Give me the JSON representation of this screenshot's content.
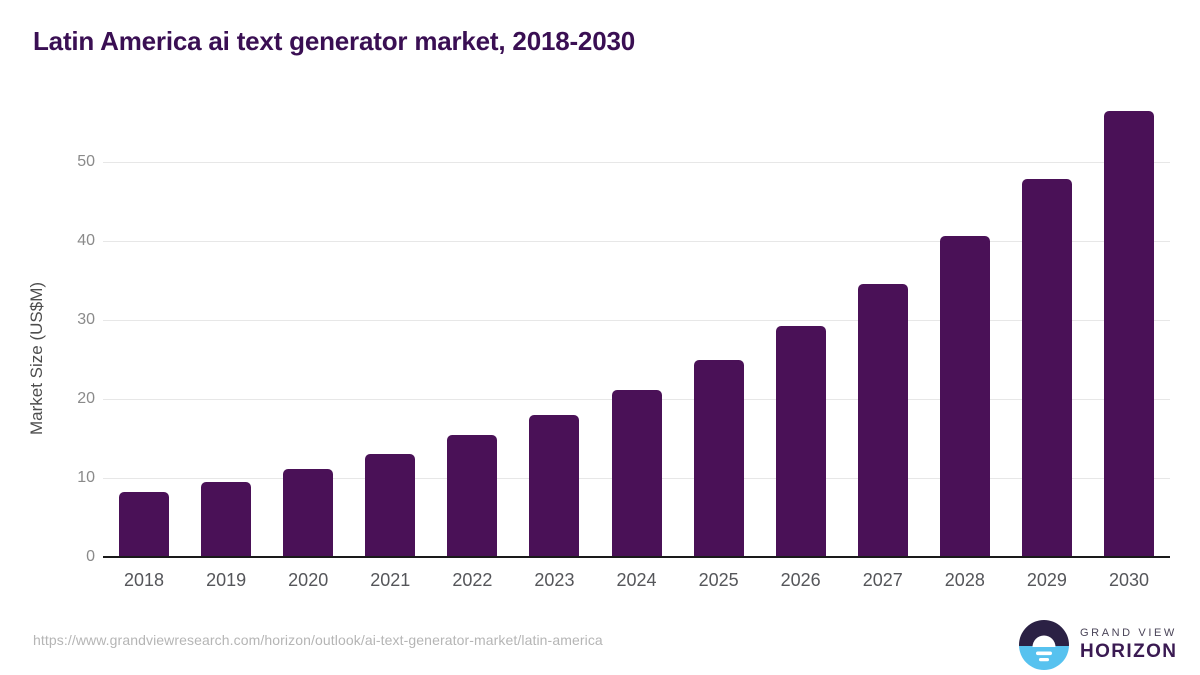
{
  "title": "Latin America ai text generator market, 2018-2030",
  "chart_data": {
    "type": "bar",
    "title": "Latin America ai text generator market, 2018-2030",
    "categories": [
      "2018",
      "2019",
      "2020",
      "2021",
      "2022",
      "2023",
      "2024",
      "2025",
      "2026",
      "2027",
      "2028",
      "2029",
      "2030"
    ],
    "values": [
      8.2,
      9.5,
      11.1,
      13.0,
      15.4,
      18.0,
      21.1,
      24.9,
      29.2,
      34.5,
      40.6,
      47.8,
      56.4
    ],
    "xlabel": "",
    "ylabel": "Market Size (US$M)",
    "yticks": [
      0,
      10,
      20,
      30,
      40,
      50
    ],
    "ylim": [
      0,
      57.8
    ],
    "grid": "horizontal-only",
    "legend": "none",
    "bar_color": "#4a1157"
  },
  "footer": {
    "source_url": "https://www.grandviewresearch.com/horizon/outlook/ai-text-generator-market/latin-america",
    "logo": {
      "brand_line1": "GRAND VIEW",
      "brand_line2": "HORIZON"
    }
  },
  "colors": {
    "title_text": "#3a0f53",
    "bar": "#4a1157",
    "axis_line": "#1a1a1a",
    "gridline": "#e7e7e7",
    "ytick_label": "#8a8a8a",
    "xtick_label": "#55565a",
    "url_text": "#b5b5b5",
    "logo_navy": "#2b2144",
    "logo_blue": "#57c2ef",
    "logo_text_dark": "#4a4458",
    "logo_text_purple": "#3a1a52"
  }
}
